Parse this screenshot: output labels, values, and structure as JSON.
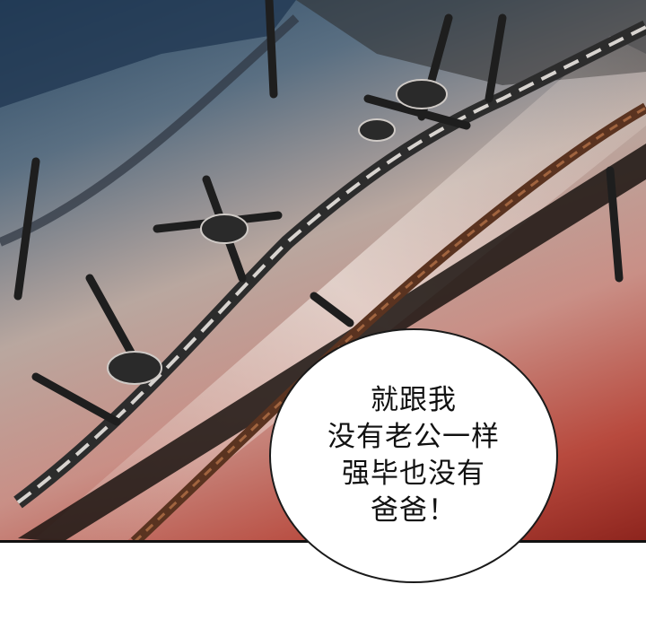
{
  "speech_bubble": {
    "lines": [
      "就跟我",
      "没有老公一样",
      "强毕也没有",
      "爸爸！"
    ]
  },
  "artwork": {
    "subject": "barbed-wire-closeup",
    "colors": {
      "sky_top": "#2c4a66",
      "mid": "#c98f86",
      "bottom_red": "#8d241d",
      "wire": "#3a3a3a",
      "rust": "#6b3a22"
    }
  }
}
